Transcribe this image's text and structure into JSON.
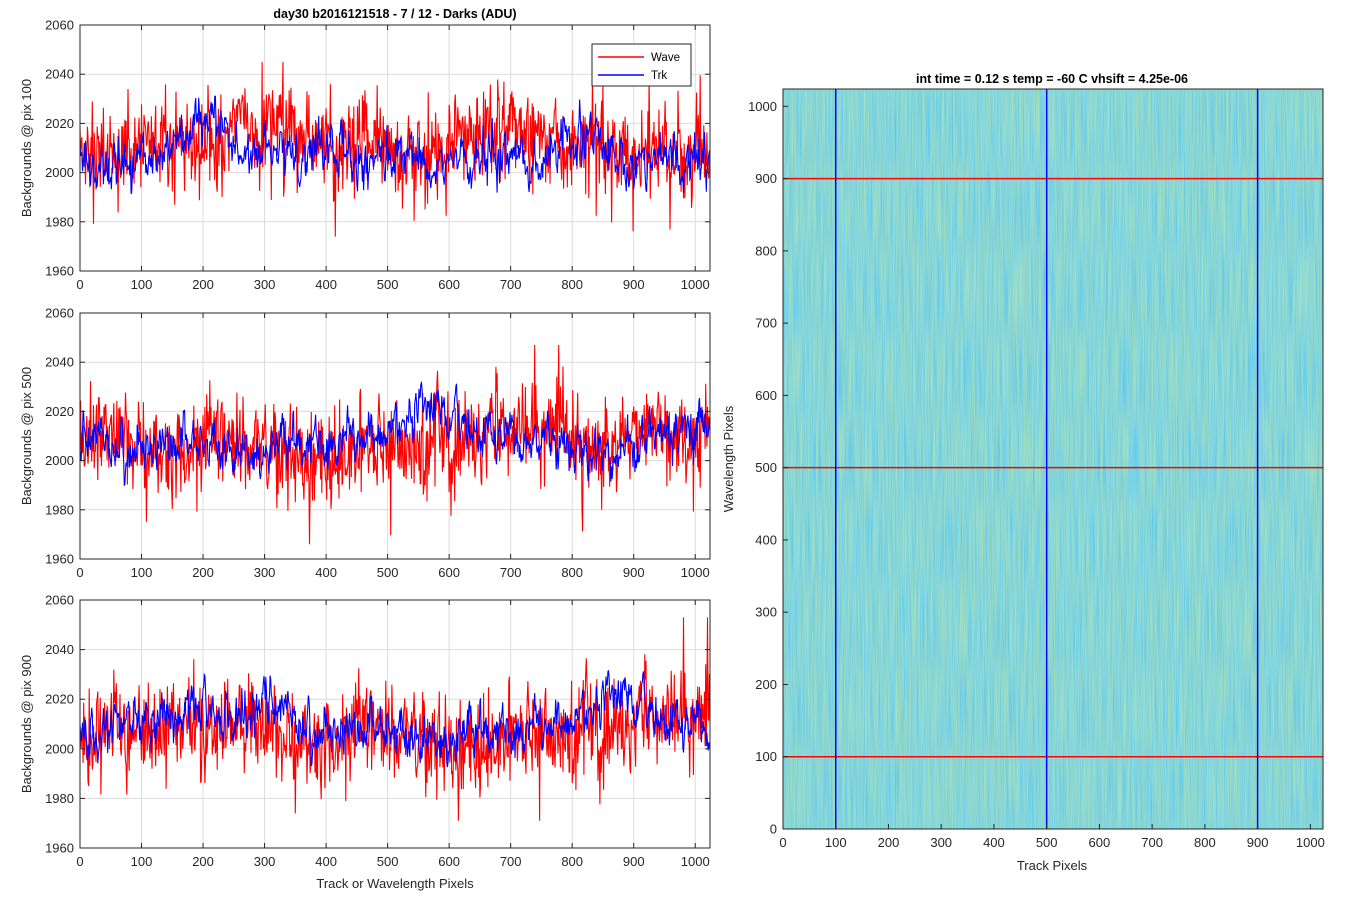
{
  "chart_data": [
    {
      "type": "line",
      "title": "day30 b2016121518 - 7 / 12 - Darks (ADU)",
      "xlabel": "",
      "ylabel": "Backgrounds @ pix 100",
      "xlim": [
        0,
        1024
      ],
      "ylim": [
        1960,
        2060
      ],
      "xticks": [
        "0",
        "100",
        "200",
        "300",
        "400",
        "500",
        "600",
        "700",
        "800",
        "900",
        "1000"
      ],
      "yticks": [
        "1960",
        "1980",
        "2000",
        "2020",
        "2040",
        "2060"
      ],
      "grid": true,
      "legend_placement": "top-right",
      "series": [
        {
          "name": "Wave",
          "color": "#ff0000",
          "mean": 2010,
          "min": 1974,
          "max": 2045
        },
        {
          "name": "Trk",
          "color": "#0000ff",
          "mean": 2008,
          "min": 1981,
          "max": 2031
        }
      ]
    },
    {
      "type": "line",
      "xlabel": "",
      "ylabel": "Backgrounds @ pix 500",
      "xlim": [
        0,
        1024
      ],
      "ylim": [
        1960,
        2060
      ],
      "xticks": [
        "0",
        "100",
        "200",
        "300",
        "400",
        "500",
        "600",
        "700",
        "800",
        "900",
        "1000"
      ],
      "yticks": [
        "1960",
        "1980",
        "2000",
        "2020",
        "2040",
        "2060"
      ],
      "grid": true,
      "series": [
        {
          "name": "Wave",
          "color": "#ff0000",
          "mean": 2008,
          "min": 1966,
          "max": 2047
        },
        {
          "name": "Trk",
          "color": "#0000ff",
          "mean": 2010,
          "min": 1973,
          "max": 2040
        }
      ]
    },
    {
      "type": "line",
      "xlabel": "Track or Wavelength Pixels",
      "ylabel": "Backgrounds @ pix 900",
      "xlim": [
        0,
        1024
      ],
      "ylim": [
        1960,
        2060
      ],
      "xticks": [
        "0",
        "100",
        "200",
        "300",
        "400",
        "500",
        "600",
        "700",
        "800",
        "900",
        "1000"
      ],
      "yticks": [
        "1960",
        "1980",
        "2000",
        "2020",
        "2040",
        "2060"
      ],
      "grid": true,
      "series": [
        {
          "name": "Wave",
          "color": "#ff0000",
          "mean": 2008,
          "min": 1971,
          "max": 2053
        },
        {
          "name": "Trk",
          "color": "#0000ff",
          "mean": 2010,
          "min": 1982,
          "max": 2033
        }
      ]
    },
    {
      "type": "heatmap",
      "title": "int time = 0.12 s    temp = -60 C    vhsift = 4.25e-06",
      "xlabel": "Track Pixels",
      "ylabel": "Wavelength Pixels",
      "xlim": [
        0,
        1024
      ],
      "ylim": [
        0,
        1024
      ],
      "xticks": [
        "0",
        "100",
        "200",
        "300",
        "400",
        "500",
        "600",
        "700",
        "800",
        "900",
        "1000"
      ],
      "yticks": [
        "0",
        "100",
        "200",
        "300",
        "400",
        "500",
        "600",
        "700",
        "800",
        "900",
        "1000"
      ],
      "colormap": [
        "#2aa7b4",
        "#b4c85a"
      ],
      "vertical_lines": {
        "color": "#0000ff",
        "x": [
          100,
          500,
          900
        ]
      },
      "horizontal_lines": {
        "color": "#ff0000",
        "y": [
          100,
          500,
          900
        ]
      }
    }
  ]
}
